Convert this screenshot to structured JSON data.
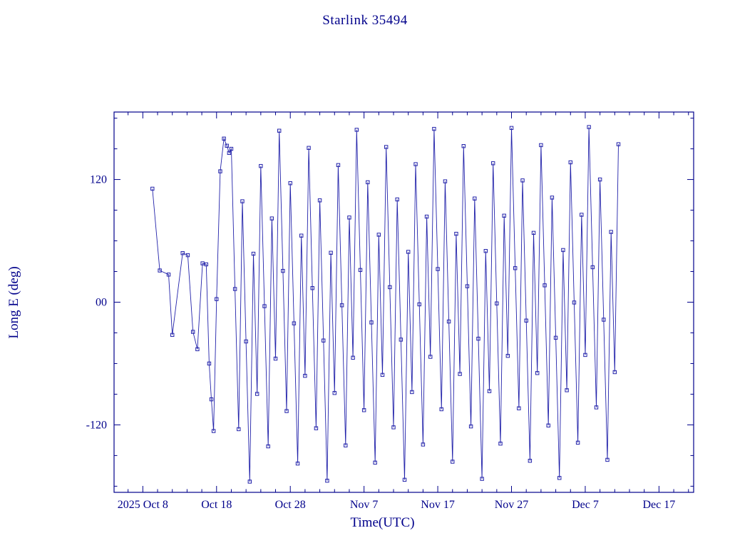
{
  "chart_data": {
    "type": "line",
    "title": "Starlink 35494",
    "xlabel": "Time(UTC)",
    "ylabel": "Long E (deg)",
    "x_unit_days_since": "2025 Oct 1",
    "xlim": [
      3.1,
      81.7
    ],
    "ylim": [
      -186,
      186
    ],
    "grid": false,
    "legend": "none",
    "marker": "open-square",
    "line_color": "#2222aa",
    "text_color": "#00008b",
    "frame_color": "#00008b",
    "x_ticks": [
      {
        "pos": 7,
        "label": "2025 Oct  8"
      },
      {
        "pos": 17,
        "label": "Oct 18"
      },
      {
        "pos": 27,
        "label": "Oct 28"
      },
      {
        "pos": 37,
        "label": "Nov  7"
      },
      {
        "pos": 47,
        "label": "Nov 17"
      },
      {
        "pos": 57,
        "label": "Nov 27"
      },
      {
        "pos": 67,
        "label": "Dec  7"
      },
      {
        "pos": 77,
        "label": "Dec 17"
      }
    ],
    "x_minor_step": 2,
    "y_ticks": [
      {
        "pos": 120,
        "label": "120"
      },
      {
        "pos": 0,
        "label": "00"
      },
      {
        "pos": -120,
        "label": "-120"
      }
    ],
    "y_minor_step": 30,
    "points": [
      [
        8.3,
        111
      ],
      [
        9.3,
        31
      ],
      [
        10.5,
        27
      ],
      [
        11.0,
        -32
      ],
      [
        12.4,
        48
      ],
      [
        13.1,
        46
      ],
      [
        13.8,
        -29
      ],
      [
        14.4,
        -46
      ],
      [
        15.1,
        38
      ],
      [
        15.6,
        37
      ],
      [
        16.0,
        -60
      ],
      [
        16.3,
        -95
      ],
      [
        16.6,
        -126
      ],
      [
        17.0,
        3
      ],
      [
        17.5,
        128
      ],
      [
        18.0,
        160
      ],
      [
        18.4,
        153
      ],
      [
        18.7,
        146
      ],
      [
        19.0,
        150.0
      ],
      [
        19.5,
        12.9
      ],
      [
        20.0,
        -124.2
      ],
      [
        20.5,
        98.7
      ],
      [
        21.0,
        -38.4
      ],
      [
        21.5,
        -175.5
      ],
      [
        22.0,
        47.4
      ],
      [
        22.5,
        -89.7
      ],
      [
        23.0,
        133.2
      ],
      [
        23.5,
        -3.9
      ],
      [
        24.0,
        -141.0
      ],
      [
        24.5,
        81.9
      ],
      [
        25.0,
        -55.2
      ],
      [
        25.5,
        167.7
      ],
      [
        26.0,
        30.6
      ],
      [
        26.5,
        -106.5
      ],
      [
        27.0,
        116.4
      ],
      [
        27.5,
        -20.7
      ],
      [
        28.0,
        -157.8
      ],
      [
        28.5,
        65.1
      ],
      [
        29.0,
        -72.0
      ],
      [
        29.5,
        150.9
      ],
      [
        30.0,
        13.8
      ],
      [
        30.5,
        -123.3
      ],
      [
        31.0,
        99.6
      ],
      [
        31.5,
        -37.5
      ],
      [
        32.0,
        -174.6
      ],
      [
        32.5,
        48.3
      ],
      [
        33.0,
        -88.8
      ],
      [
        33.5,
        134.1
      ],
      [
        34.0,
        -3.0
      ],
      [
        34.5,
        -140.1
      ],
      [
        35.0,
        82.8
      ],
      [
        35.5,
        -54.3
      ],
      [
        36.0,
        168.6
      ],
      [
        36.5,
        31.5
      ],
      [
        37.0,
        -105.6
      ],
      [
        37.5,
        117.3
      ],
      [
        38.0,
        -19.8
      ],
      [
        38.5,
        -156.9
      ],
      [
        39.0,
        66.0
      ],
      [
        39.5,
        -71.1
      ],
      [
        40.0,
        151.8
      ],
      [
        40.5,
        14.7
      ],
      [
        41.0,
        -122.4
      ],
      [
        41.5,
        100.5
      ],
      [
        42.0,
        -36.6
      ],
      [
        42.5,
        -173.7
      ],
      [
        43.0,
        49.2
      ],
      [
        43.5,
        -87.9
      ],
      [
        44.0,
        135.0
      ],
      [
        44.5,
        -2.1
      ],
      [
        45.0,
        -139.2
      ],
      [
        45.5,
        83.7
      ],
      [
        46.0,
        -53.4
      ],
      [
        46.5,
        169.5
      ],
      [
        47.0,
        32.4
      ],
      [
        47.5,
        -104.7
      ],
      [
        48.0,
        118.2
      ],
      [
        48.5,
        -18.9
      ],
      [
        49.0,
        -156.0
      ],
      [
        49.5,
        66.9
      ],
      [
        50.0,
        -70.2
      ],
      [
        50.5,
        152.7
      ],
      [
        51.0,
        15.6
      ],
      [
        51.5,
        -121.5
      ],
      [
        52.0,
        101.4
      ],
      [
        52.5,
        -35.7
      ],
      [
        53.0,
        -172.8
      ],
      [
        53.5,
        50.1
      ],
      [
        54.0,
        -87.0
      ],
      [
        54.5,
        135.9
      ],
      [
        55.0,
        -1.2
      ],
      [
        55.5,
        -138.3
      ],
      [
        56.0,
        84.6
      ],
      [
        56.5,
        -52.5
      ],
      [
        57.0,
        170.4
      ],
      [
        57.5,
        33.3
      ],
      [
        58.0,
        -103.8
      ],
      [
        58.5,
        119.1
      ],
      [
        59.0,
        -18.0
      ],
      [
        59.5,
        -155.1
      ],
      [
        60.0,
        67.8
      ],
      [
        60.5,
        -69.3
      ],
      [
        61.0,
        153.6
      ],
      [
        61.5,
        16.5
      ],
      [
        62.0,
        -120.6
      ],
      [
        62.5,
        102.3
      ],
      [
        63.0,
        -34.8
      ],
      [
        63.5,
        -171.9
      ],
      [
        64.0,
        51.0
      ],
      [
        64.5,
        -86.1
      ],
      [
        65.0,
        136.8
      ],
      [
        65.5,
        -0.3
      ],
      [
        66.0,
        -137.4
      ],
      [
        66.5,
        85.5
      ],
      [
        67.0,
        -51.6
      ],
      [
        67.5,
        171.3
      ],
      [
        68.0,
        34.2
      ],
      [
        68.5,
        -102.9
      ],
      [
        69.0,
        120.0
      ],
      [
        69.5,
        -17.1
      ],
      [
        70.0,
        -154.2
      ],
      [
        70.5,
        68.7
      ],
      [
        71.0,
        -68.4
      ],
      [
        71.5,
        154.5
      ]
    ]
  }
}
